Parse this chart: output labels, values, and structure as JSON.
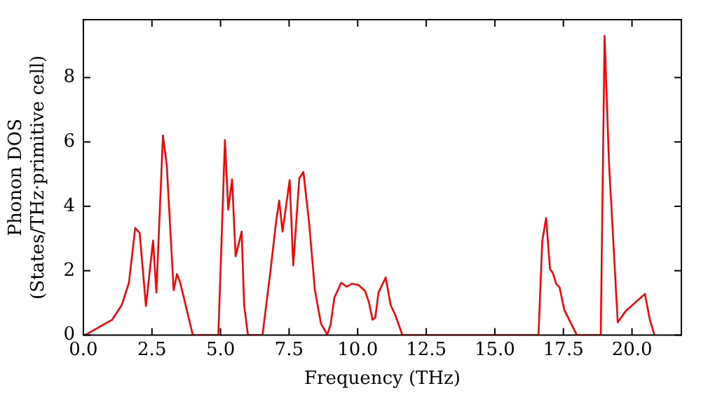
{
  "chart_data": {
    "type": "line",
    "xlabel": "Frequency (THz)",
    "ylabel": "Phonon DOS\n(States/THz·primitive cell)",
    "xlim": [
      0,
      21.8
    ],
    "xticks": [
      {
        "value": 0,
        "label": "0.0"
      },
      {
        "value": 2.5,
        "label": "2.5"
      },
      {
        "value": 5,
        "label": "5.0"
      },
      {
        "value": 7.5,
        "label": "7.5"
      },
      {
        "value": 10,
        "label": "10.0"
      },
      {
        "value": 12.5,
        "label": "12.5"
      },
      {
        "value": 15,
        "label": "15.0"
      },
      {
        "value": 17.5,
        "label": "17.5"
      },
      {
        "value": 20,
        "label": "20.0"
      }
    ],
    "ylim": [
      0,
      9.8
    ],
    "yticks": [
      0,
      2,
      4,
      6,
      8
    ],
    "grid": false,
    "legend": false,
    "marker": "none",
    "line_style": "solid",
    "series": [
      {
        "color": "#ff0000",
        "x": [
          0.05,
          1.05,
          1.4,
          1.66,
          1.89,
          2.05,
          2.28,
          2.54,
          2.66,
          2.9,
          3.04,
          3.29,
          3.41,
          3.53,
          3.99,
          4.92,
          5.16,
          5.28,
          5.42,
          5.55,
          5.77,
          5.86,
          6.0,
          6.53,
          6.82,
          7.03,
          7.14,
          7.26,
          7.52,
          7.65,
          7.87,
          8.02,
          8.23,
          8.44,
          8.66,
          8.89,
          9.01,
          9.15,
          9.4,
          9.59,
          9.8,
          10.03,
          10.27,
          10.41,
          10.54,
          10.64,
          10.76,
          11.02,
          11.2,
          11.37,
          11.63,
          16.59,
          16.73,
          16.87,
          17.01,
          17.11,
          17.24,
          17.36,
          17.53,
          17.71,
          17.99,
          18.86,
          19.0,
          19.16,
          19.48,
          19.77,
          20.47,
          20.65,
          20.82
        ],
        "values": [
          0,
          0.48,
          0.94,
          1.63,
          3.33,
          3.18,
          0.91,
          2.94,
          1.33,
          6.2,
          5.27,
          1.4,
          1.9,
          1.63,
          0,
          0,
          6.06,
          3.9,
          4.84,
          2.45,
          3.22,
          0.94,
          0,
          0,
          2.0,
          3.56,
          4.18,
          3.22,
          4.82,
          2.17,
          4.87,
          5.07,
          3.48,
          1.4,
          0.36,
          0.02,
          0.32,
          1.17,
          1.63,
          1.51,
          1.6,
          1.56,
          1.37,
          1.02,
          0.48,
          0.55,
          1.33,
          1.79,
          0.94,
          0.63,
          0,
          0,
          2.94,
          3.64,
          2.05,
          1.94,
          1.59,
          1.48,
          0.79,
          0.48,
          0,
          0,
          9.3,
          5.36,
          0.4,
          0.75,
          1.28,
          0.48,
          0
        ]
      }
    ]
  }
}
